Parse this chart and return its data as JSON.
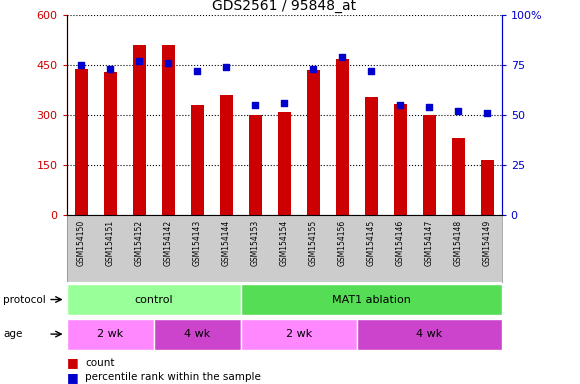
{
  "title": "GDS2561 / 95848_at",
  "samples": [
    "GSM154150",
    "GSM154151",
    "GSM154152",
    "GSM154142",
    "GSM154143",
    "GSM154144",
    "GSM154153",
    "GSM154154",
    "GSM154155",
    "GSM154156",
    "GSM154145",
    "GSM154146",
    "GSM154147",
    "GSM154148",
    "GSM154149"
  ],
  "bar_values": [
    440,
    430,
    510,
    510,
    330,
    360,
    300,
    310,
    435,
    470,
    355,
    335,
    300,
    230,
    165
  ],
  "percentile_values": [
    75,
    73,
    77,
    76,
    72,
    74,
    55,
    56,
    73,
    79,
    72,
    55,
    54,
    52,
    51
  ],
  "bar_color": "#cc0000",
  "dot_color": "#0000cc",
  "ylim_left": [
    0,
    600
  ],
  "ylim_right": [
    0,
    100
  ],
  "yticks_left": [
    0,
    150,
    300,
    450,
    600
  ],
  "yticks_right": [
    0,
    25,
    50,
    75,
    100
  ],
  "yticklabels_right": [
    "0",
    "25",
    "50",
    "75",
    "100%"
  ],
  "protocol_labels": [
    "control",
    "MAT1 ablation"
  ],
  "protocol_color_light": "#99ff99",
  "protocol_color_dark": "#55dd55",
  "age_labels": [
    "2 wk",
    "4 wk",
    "2 wk",
    "4 wk"
  ],
  "age_color_light": "#ff88ff",
  "age_color_dark": "#cc44cc",
  "xticklabel_bg": "#cccccc",
  "legend_count_color": "#cc0000",
  "legend_dot_color": "#0000cc"
}
